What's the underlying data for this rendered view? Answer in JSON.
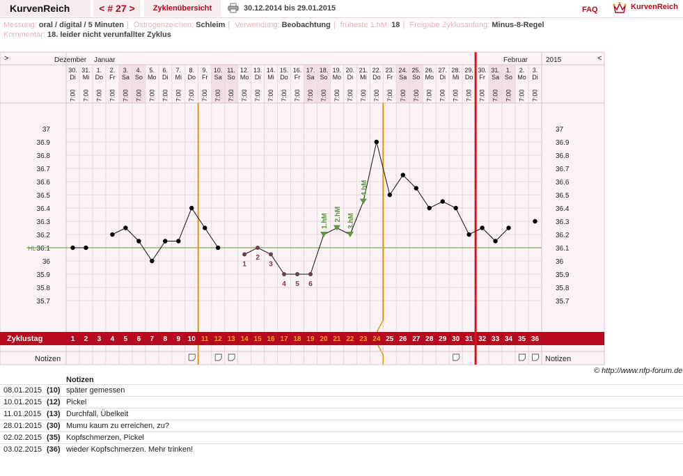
{
  "header": {
    "app_name": "KurvenReich",
    "cycle_label": "< # 27 >",
    "overview_tab": "Zyklenübersicht",
    "print_icon": "printer-icon",
    "date_range": "30.12.2014 bis 29.01.2015",
    "faq": "FAQ",
    "logo_icon": "crown-icon",
    "logo_text": "KurvenReich"
  },
  "info": {
    "messung_label": "Messung:",
    "messung_value": "oral / digital / 5 Minuten",
    "oestrogen_label": "Östrogenzeichen:",
    "oestrogen_value": "Schleim",
    "verwendung_label": "Verwendung:",
    "verwendung_value": "Beobachtung",
    "frueheste_label": "früheste 1.hM:",
    "frueheste_value": "18",
    "freigabe_label": "Freigabe Zyklusanfang:",
    "freigabe_value": "Minus-8-Regel",
    "kommentar_label": "Kommentar:",
    "kommentar_value": "18. leider nicht verunfallter Zyklus"
  },
  "chart": {
    "left_arrow": ">",
    "right_arrow": "<",
    "month_labels": [
      "Dezember",
      "Januar",
      "Februar",
      "2015"
    ],
    "year_right": "2015",
    "hl_label": "HL",
    "row_label_cycleday": "Zyklustag",
    "row_label_notes": "Notizen",
    "row_label_notes_right": "Notizen",
    "coverline_temp": 36.1,
    "colors": {
      "accent": "#b50a1e",
      "coverline": "#5a9a3a",
      "orange": "#f0900a",
      "weekend": "#f3e0e4",
      "grid": "#e8d6da"
    }
  },
  "chart_data": {
    "type": "line",
    "ylim": [
      35.6,
      37.1
    ],
    "yticks": [
      "37",
      "36.9",
      "36.8",
      "36.7",
      "36.6",
      "36.5",
      "36.4",
      "36.3",
      "36.2",
      "36.1",
      "36",
      "35.9",
      "35.8",
      "35.7"
    ],
    "dates": [
      "30.",
      "31.",
      "1.",
      "2.",
      "3.",
      "4.",
      "5.",
      "6.",
      "7.",
      "8.",
      "9.",
      "10.",
      "11.",
      "12.",
      "13.",
      "14.",
      "15.",
      "16.",
      "17.",
      "18.",
      "19.",
      "20.",
      "21.",
      "22.",
      "23.",
      "24.",
      "25.",
      "26.",
      "27.",
      "28.",
      "29.",
      "30.",
      "31.",
      "1.",
      "2.",
      "3."
    ],
    "weekdays": [
      "Di",
      "Mi",
      "Do",
      "Fr",
      "Sa",
      "So",
      "Mo",
      "Di",
      "Mi",
      "Do",
      "Fr",
      "Sa",
      "So",
      "Mo",
      "Di",
      "Mi",
      "Do",
      "Fr",
      "Sa",
      "So",
      "Mo",
      "Di",
      "Mi",
      "Do",
      "Fr",
      "Sa",
      "So",
      "Mo",
      "Di",
      "Mi",
      "Do",
      "Fr",
      "Sa",
      "So",
      "Mo",
      "Di"
    ],
    "times": "7:00",
    "cycle_days": [
      1,
      2,
      3,
      4,
      5,
      6,
      7,
      8,
      9,
      10,
      11,
      12,
      13,
      14,
      15,
      16,
      17,
      18,
      19,
      20,
      21,
      22,
      23,
      24,
      25,
      26,
      27,
      28,
      29,
      30,
      31,
      32,
      33,
      34,
      35,
      36
    ],
    "temps": [
      36.1,
      36.1,
      null,
      36.2,
      36.25,
      36.15,
      36.0,
      36.15,
      36.15,
      36.4,
      36.25,
      36.1,
      null,
      36.05,
      36.1,
      36.05,
      35.9,
      35.9,
      35.9,
      36.2,
      36.25,
      36.2,
      36.45,
      36.9,
      36.5,
      36.65,
      36.55,
      36.4,
      36.45,
      36.4,
      36.2,
      36.25,
      36.15,
      36.25,
      null,
      36.3
    ],
    "low_labels": [
      {
        "day": 14,
        "label": "1"
      },
      {
        "day": 15,
        "label": "2"
      },
      {
        "day": 16,
        "label": "3"
      },
      {
        "day": 17,
        "label": "4"
      },
      {
        "day": 18,
        "label": "5"
      },
      {
        "day": 19,
        "label": "6"
      }
    ],
    "high_labels": [
      {
        "day": 20,
        "label": "1.hM"
      },
      {
        "day": 21,
        "label": "2.hM"
      },
      {
        "day": 22,
        "label": "3.hM"
      },
      {
        "day": 23,
        "label": "4.hM"
      }
    ],
    "note_days": [
      10,
      12,
      13,
      30,
      35,
      36
    ]
  },
  "notes": {
    "heading": "Notizen",
    "copyright": "© http://www.nfp-forum.de",
    "rows": [
      {
        "date": "08.01.2015",
        "day": "(10)",
        "text": "später gemessen"
      },
      {
        "date": "10.01.2015",
        "day": "(12)",
        "text": "Pickel"
      },
      {
        "date": "11.01.2015",
        "day": "(13)",
        "text": "Durchfall, Übelkeit"
      },
      {
        "date": "28.01.2015",
        "day": "(30)",
        "text": "Mumu kaum zu erreichen, zu?"
      },
      {
        "date": "02.02.2015",
        "day": "(35)",
        "text": "Kopfschmerzen, Pickel"
      },
      {
        "date": "03.02.2015",
        "day": "(36)",
        "text": "wieder Kopfschmerzen. Mehr trinken!"
      }
    ]
  }
}
